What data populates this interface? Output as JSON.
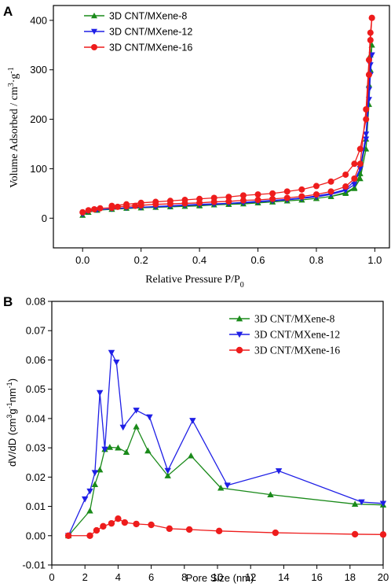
{
  "colors": {
    "green": "#1a8a1a",
    "blue": "#1f1fe6",
    "red": "#ee1c1c"
  },
  "chart_data": [
    {
      "type": "line",
      "panel_label": "A",
      "xlabel": "Relative Pressure P/P",
      "xlabel_sub": "0",
      "ylabel": "Volume Adsorbed / cm",
      "ylabel_sup1": "3",
      "ylabel_mid": "·g",
      "ylabel_sup2": "-1",
      "xlim": [
        -0.1,
        1.05
      ],
      "ylim": [
        -60,
        430
      ],
      "xticks": [
        0.0,
        0.2,
        0.4,
        0.6,
        0.8,
        1.0
      ],
      "xtick_labels": [
        "0.0",
        "0.2",
        "0.4",
        "0.6",
        "0.8",
        "1.0"
      ],
      "yticks": [
        0,
        100,
        200,
        300,
        400
      ],
      "ytick_labels": [
        "0",
        "100",
        "200",
        "300",
        "400"
      ],
      "legend_position": "top-left",
      "series": [
        {
          "name": "3D CNT/MXene-8",
          "color": "#1a8a1a",
          "marker": "triangle-up",
          "x": [
            0.0,
            0.02,
            0.05,
            0.1,
            0.15,
            0.2,
            0.25,
            0.3,
            0.35,
            0.4,
            0.45,
            0.5,
            0.55,
            0.6,
            0.65,
            0.7,
            0.75,
            0.8,
            0.85,
            0.9,
            0.93,
            0.95,
            0.97,
            0.98,
            0.985,
            0.99,
            0.99,
            0.985,
            0.98,
            0.97,
            0.95,
            0.93,
            0.9,
            0.85,
            0.8,
            0.75,
            0.7,
            0.65,
            0.6,
            0.5,
            0.4,
            0.3,
            0.2,
            0.1
          ],
          "y": [
            6,
            12,
            16,
            18,
            20,
            21,
            22,
            23,
            24,
            25,
            27,
            28,
            29,
            31,
            33,
            35,
            37,
            40,
            44,
            52,
            62,
            90,
            160,
            270,
            330,
            350,
            350,
            300,
            230,
            140,
            80,
            60,
            50,
            44,
            40,
            37,
            35,
            33,
            31,
            28,
            26,
            23,
            21,
            18
          ]
        },
        {
          "name": "3D CNT/MXene-12",
          "color": "#1f1fe6",
          "marker": "triangle-down",
          "x": [
            0.0,
            0.02,
            0.05,
            0.1,
            0.15,
            0.2,
            0.25,
            0.3,
            0.35,
            0.4,
            0.45,
            0.5,
            0.55,
            0.6,
            0.65,
            0.7,
            0.75,
            0.8,
            0.85,
            0.9,
            0.93,
            0.95,
            0.97,
            0.98,
            0.985,
            0.99,
            0.99,
            0.985,
            0.98,
            0.97,
            0.95,
            0.93,
            0.9,
            0.85,
            0.8,
            0.75,
            0.7,
            0.65,
            0.6,
            0.5,
            0.4,
            0.3,
            0.2,
            0.1
          ],
          "y": [
            8,
            14,
            17,
            19,
            21,
            22,
            23,
            24,
            26,
            27,
            28,
            30,
            31,
            33,
            35,
            37,
            40,
            43,
            48,
            56,
            68,
            100,
            170,
            260,
            310,
            330,
            330,
            290,
            240,
            160,
            100,
            75,
            58,
            50,
            45,
            41,
            38,
            36,
            34,
            30,
            28,
            25,
            22,
            19
          ]
        },
        {
          "name": "3D CNT/MXene-16",
          "color": "#ee1c1c",
          "marker": "circle",
          "x": [
            0.0,
            0.02,
            0.04,
            0.06,
            0.1,
            0.12,
            0.15,
            0.18,
            0.2,
            0.25,
            0.3,
            0.35,
            0.4,
            0.45,
            0.5,
            0.55,
            0.6,
            0.65,
            0.7,
            0.75,
            0.8,
            0.85,
            0.9,
            0.93,
            0.95,
            0.97,
            0.98,
            0.985,
            0.99,
            0.99,
            0.985,
            0.98,
            0.97,
            0.95,
            0.93,
            0.9,
            0.85,
            0.8,
            0.75,
            0.7,
            0.65,
            0.6,
            0.55,
            0.5,
            0.45,
            0.4,
            0.35,
            0.3,
            0.25,
            0.2,
            0.15,
            0.1
          ],
          "y": [
            12,
            16,
            18,
            20,
            21,
            23,
            24,
            25,
            26,
            28,
            29,
            30,
            31,
            33,
            34,
            36,
            37,
            39,
            41,
            44,
            48,
            54,
            64,
            80,
            110,
            220,
            320,
            375,
            405,
            405,
            360,
            290,
            200,
            140,
            110,
            88,
            74,
            65,
            58,
            54,
            50,
            48,
            46,
            43,
            41,
            39,
            37,
            35,
            33,
            31,
            28,
            25
          ]
        }
      ]
    },
    {
      "type": "line",
      "panel_label": "B",
      "xlabel": "Pore Size (nm)",
      "ylabel_prefix": "dV/dD (cm",
      "ylabel_sup1": "3",
      "ylabel_g": "g",
      "ylabel_sup2": "-1",
      "ylabel_nm": "nm",
      "ylabel_sup3": "-1",
      "ylabel_suffix": ")",
      "xlim": [
        0,
        20
      ],
      "ylim": [
        -0.01,
        0.08
      ],
      "xticks": [
        0,
        2,
        4,
        6,
        8,
        10,
        12,
        14,
        16,
        18,
        20
      ],
      "xtick_labels": [
        "0",
        "2",
        "4",
        "6",
        "8",
        "10",
        "12",
        "14",
        "16",
        "18",
        "20"
      ],
      "yticks": [
        -0.01,
        0.0,
        0.01,
        0.02,
        0.03,
        0.04,
        0.05,
        0.06,
        0.07,
        0.08
      ],
      "ytick_labels": [
        "-0.01",
        "0.00",
        "0.01",
        "0.02",
        "0.03",
        "0.04",
        "0.05",
        "0.06",
        "0.07",
        "0.08"
      ],
      "legend_position": "top-right",
      "series": [
        {
          "name": "3D CNT/MXene-8",
          "color": "#1a8a1a",
          "marker": "triangle-up",
          "x": [
            1.0,
            2.3,
            2.6,
            2.9,
            3.2,
            3.5,
            4.0,
            4.5,
            5.1,
            5.8,
            7.0,
            8.4,
            10.2,
            13.2,
            18.3,
            20.0
          ],
          "y": [
            0.0,
            0.0085,
            0.0175,
            0.0225,
            0.0295,
            0.0302,
            0.03,
            0.0285,
            0.0372,
            0.029,
            0.0205,
            0.0273,
            0.0163,
            0.014,
            0.0108,
            0.0105
          ]
        },
        {
          "name": "3D CNT/MXene-12",
          "color": "#1f1fe6",
          "marker": "triangle-down",
          "x": [
            1.0,
            2.0,
            2.3,
            2.6,
            2.9,
            3.2,
            3.6,
            3.9,
            4.3,
            5.1,
            5.9,
            7.0,
            8.5,
            10.6,
            13.7,
            18.7,
            20.0
          ],
          "y": [
            0.0,
            0.0125,
            0.0152,
            0.0215,
            0.0488,
            0.0295,
            0.0625,
            0.0592,
            0.037,
            0.0428,
            0.0405,
            0.0222,
            0.0393,
            0.0172,
            0.0221,
            0.0115,
            0.011
          ]
        },
        {
          "name": "3D CNT/MXene-16",
          "color": "#ee1c1c",
          "marker": "circle",
          "x": [
            1.0,
            2.3,
            2.7,
            3.1,
            3.6,
            4.0,
            4.4,
            5.1,
            6.0,
            7.1,
            8.3,
            10.1,
            13.5,
            18.3,
            20.0
          ],
          "y": [
            0.0,
            0.0,
            0.0018,
            0.0032,
            0.0042,
            0.0058,
            0.0045,
            0.004,
            0.0037,
            0.0024,
            0.0021,
            0.0016,
            0.001,
            0.0005,
            0.0004
          ]
        }
      ]
    }
  ]
}
